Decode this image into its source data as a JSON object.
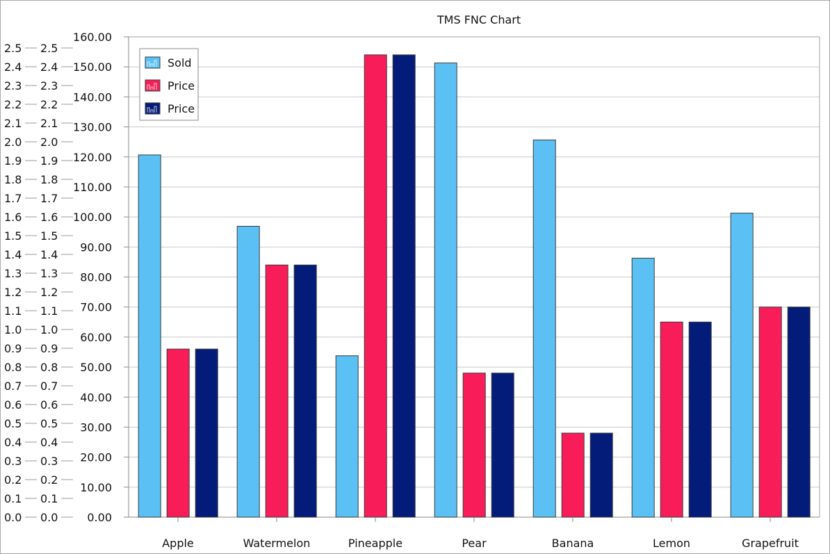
{
  "chart_data": {
    "type": "bar",
    "title": "TMS FNC Chart",
    "categories": [
      "Apple",
      "Watermelon",
      "Pineapple",
      "Pear",
      "Banana",
      "Lemon",
      "Grapefruit"
    ],
    "series": [
      {
        "name": "Sold",
        "color": "#5bc0f3",
        "values": [
          1.93,
          1.55,
          0.86,
          2.42,
          2.01,
          1.38,
          1.62
        ]
      },
      {
        "name": "Price",
        "color": "#f81d58",
        "values": [
          56.0,
          84.0,
          154.0,
          48.0,
          28.0,
          65.0,
          70.0
        ]
      },
      {
        "name": "Price",
        "color": "#031c79",
        "values": [
          56.0,
          84.0,
          154.0,
          48.0,
          28.0,
          65.0,
          70.0
        ]
      }
    ],
    "y_axes": [
      {
        "id": "axis-sold-outer",
        "range": [
          0,
          2.5
        ],
        "step": 0.1,
        "decimals": 1
      },
      {
        "id": "axis-sold-inner",
        "range": [
          0,
          2.5
        ],
        "step": 0.1,
        "decimals": 1
      },
      {
        "id": "axis-price",
        "range": [
          0,
          160
        ],
        "step": 10,
        "decimals": 2
      }
    ],
    "grid": true,
    "legend": "top-left"
  }
}
